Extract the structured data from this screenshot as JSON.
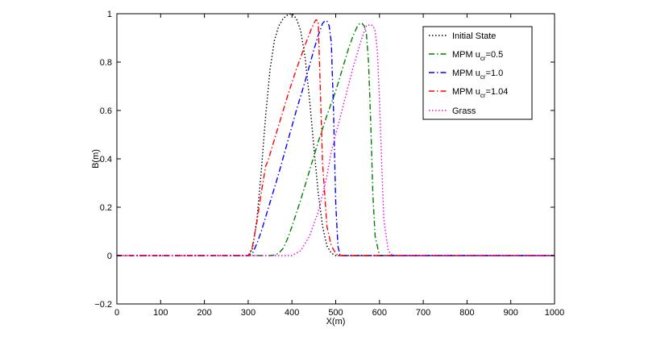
{
  "chart_data": {
    "type": "line",
    "title": "",
    "xlabel": "X(m)",
    "ylabel": "B(m)",
    "xlim": [
      0,
      1000
    ],
    "ylim": [
      -0.2,
      1
    ],
    "xticks": [
      0,
      100,
      200,
      300,
      400,
      500,
      600,
      700,
      800,
      900,
      1000
    ],
    "yticks": [
      -0.2,
      0,
      0.2,
      0.4,
      0.6,
      0.8,
      1
    ],
    "xtick_labels": [
      "0",
      "100",
      "200",
      "300",
      "400",
      "500",
      "600",
      "700",
      "800",
      "900",
      "1000"
    ],
    "ytick_labels": [
      "−0.2",
      "0",
      "0.2",
      "0.4",
      "0.6",
      "0.8",
      "1"
    ],
    "grid": false,
    "legend_position": "top-right",
    "series": [
      {
        "name": "Initial State",
        "legend_main": "Initial State",
        "legend_sub": "",
        "legend_tail": "",
        "color": "#000000",
        "dash": "1.5,2.5",
        "x": [
          0,
          300,
          310,
          320,
          330,
          340,
          350,
          360,
          370,
          380,
          390,
          400,
          410,
          420,
          430,
          440,
          450,
          460,
          470,
          480,
          490,
          500,
          1000
        ],
        "y": [
          0,
          0,
          0.03,
          0.15,
          0.35,
          0.58,
          0.77,
          0.89,
          0.95,
          0.98,
          0.995,
          1.0,
          0.98,
          0.93,
          0.82,
          0.65,
          0.45,
          0.26,
          0.12,
          0.04,
          0.01,
          0,
          0
        ]
      },
      {
        "name": "MPM u_cr=0.5",
        "legend_main": "MPM u",
        "legend_sub": "cr",
        "legend_tail": "=0.5",
        "color": "#007f00",
        "dash": "7,3,1.5,3",
        "x": [
          0,
          350,
          360,
          370,
          380,
          390,
          400,
          420,
          440,
          460,
          480,
          500,
          520,
          530,
          540,
          550,
          555,
          560,
          565,
          570,
          575,
          580,
          585,
          590,
          600,
          1000
        ],
        "y": [
          0,
          0,
          0.002,
          0.01,
          0.03,
          0.07,
          0.12,
          0.23,
          0.35,
          0.47,
          0.58,
          0.68,
          0.8,
          0.86,
          0.91,
          0.95,
          0.96,
          0.96,
          0.95,
          0.92,
          0.8,
          0.55,
          0.25,
          0.08,
          0,
          0
        ]
      },
      {
        "name": "MPM u_cr=1.0",
        "legend_main": "MPM u",
        "legend_sub": "cr",
        "legend_tail": "=1.0",
        "color": "#0000ff",
        "dash": "7,3,1.5,3",
        "x": [
          0,
          300,
          310,
          320,
          330,
          340,
          350,
          370,
          390,
          410,
          430,
          450,
          460,
          470,
          475,
          480,
          485,
          490,
          495,
          500,
          505,
          510,
          1000
        ],
        "y": [
          0,
          0,
          0.01,
          0.05,
          0.1,
          0.16,
          0.22,
          0.34,
          0.47,
          0.6,
          0.72,
          0.85,
          0.91,
          0.96,
          0.97,
          0.97,
          0.95,
          0.88,
          0.6,
          0.22,
          0.04,
          0,
          0
        ]
      },
      {
        "name": "MPM u_cr=1.04",
        "legend_main": "MPM u",
        "legend_sub": "cr",
        "legend_tail": "=1.04",
        "color": "#ff0000",
        "dash": "7,3,1.5,3",
        "x": [
          0,
          300,
          305,
          310,
          320,
          330,
          340,
          345,
          350,
          370,
          390,
          410,
          430,
          445,
          450,
          455,
          460,
          465,
          470,
          480,
          490,
          500,
          505,
          1000
        ],
        "y": [
          0,
          0,
          0.01,
          0.04,
          0.14,
          0.26,
          0.37,
          0.39,
          0.42,
          0.54,
          0.66,
          0.77,
          0.87,
          0.94,
          0.96,
          0.975,
          0.97,
          0.68,
          0.38,
          0.12,
          0.04,
          0.01,
          0,
          0
        ]
      },
      {
        "name": "Grass",
        "legend_main": "Grass",
        "legend_sub": "",
        "legend_tail": "",
        "color": "#ee00ee",
        "dash": "1.5,2.5",
        "x": [
          0,
          400,
          420,
          440,
          460,
          470,
          480,
          490,
          500,
          520,
          540,
          560,
          570,
          580,
          585,
          590,
          595,
          600,
          605,
          610,
          620,
          630,
          1000
        ],
        "y": [
          0,
          0,
          0.02,
          0.08,
          0.18,
          0.25,
          0.33,
          0.43,
          0.5,
          0.64,
          0.78,
          0.9,
          0.95,
          0.955,
          0.95,
          0.93,
          0.85,
          0.65,
          0.38,
          0.15,
          0.02,
          0,
          0
        ]
      }
    ]
  }
}
